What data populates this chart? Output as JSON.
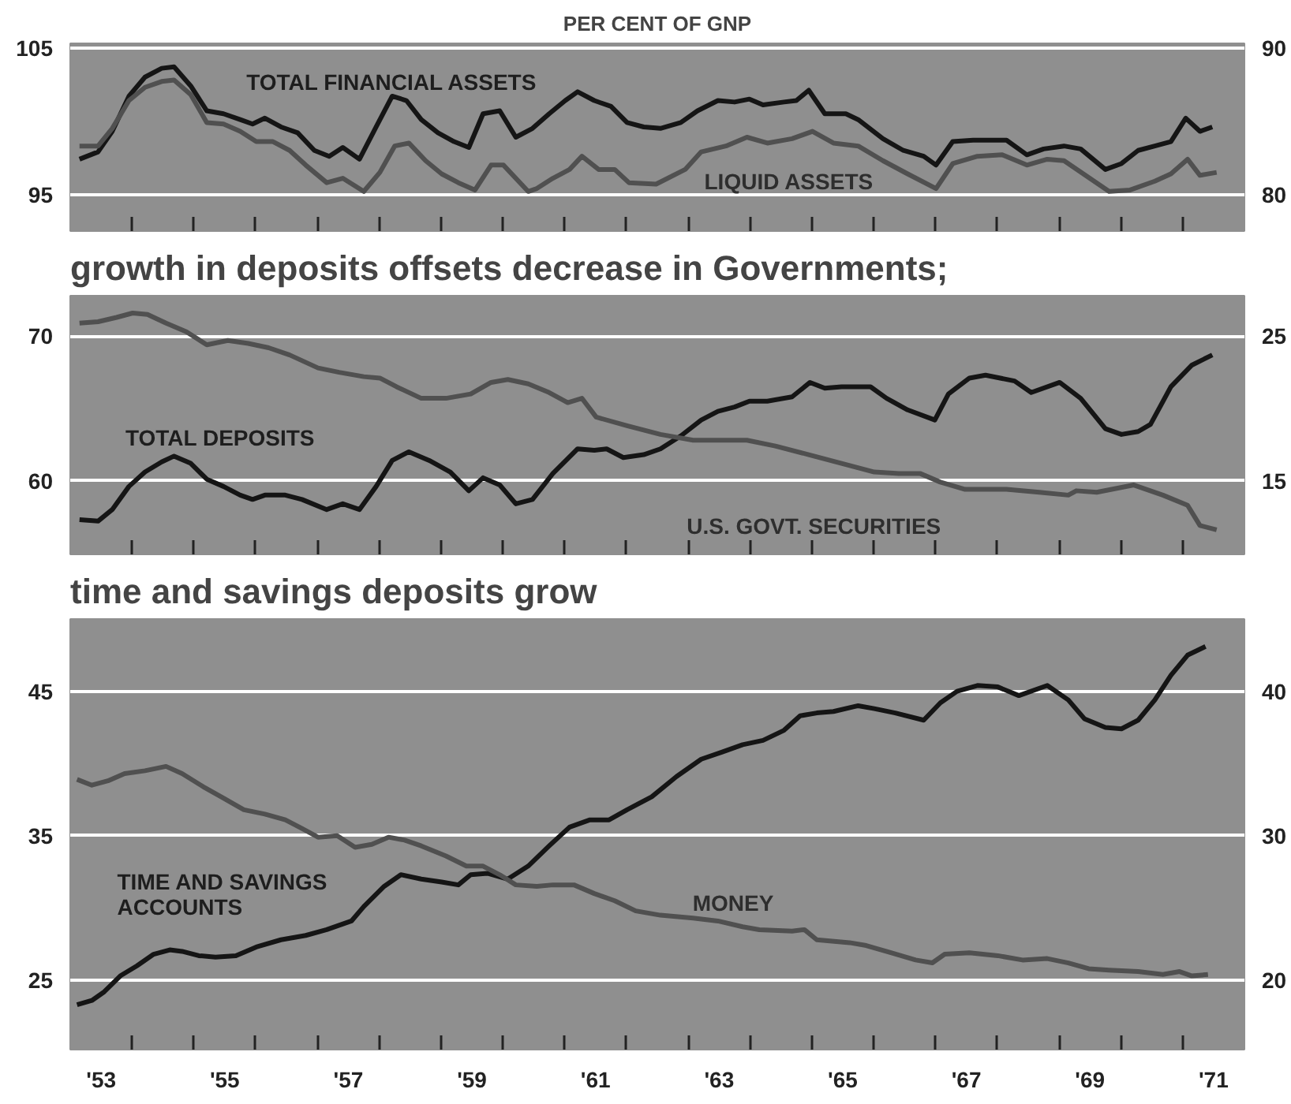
{
  "chart_data": [
    {
      "type": "line",
      "title": "PER CENT OF GNP",
      "xlim": [
        1952.5,
        1971.5
      ],
      "ylim": [
        92.5,
        105.3
      ],
      "yticks": [
        95,
        105
      ],
      "y2lim": [
        77.5,
        90.3
      ],
      "y2ticks": [
        80,
        90
      ],
      "grid": "y",
      "tick_labels": "y",
      "series": [
        {
          "name": "TOTAL FINANCIAL ASSETS",
          "color": "#151515",
          "x": [
            1952.65,
            1952.95,
            1953.18,
            1953.45,
            1953.71,
            1953.98,
            1954.18,
            1954.45,
            1954.71,
            1954.98,
            1955.25,
            1955.45,
            1955.65,
            1955.91,
            1956.18,
            1956.45,
            1956.69,
            1956.91,
            1957.18,
            1957.45,
            1957.71,
            1957.94,
            1958.18,
            1958.45,
            1958.71,
            1958.95,
            1959.18,
            1959.45,
            1959.71,
            1959.98,
            1960.25,
            1960.51,
            1960.71,
            1960.98,
            1961.25,
            1961.51,
            1961.78,
            1962.05,
            1962.38,
            1962.65,
            1962.98,
            1963.25,
            1963.49,
            1963.71,
            1964.05,
            1964.25,
            1964.45,
            1964.71,
            1965.05,
            1965.25,
            1965.65,
            1965.98,
            1966.31,
            1966.51,
            1966.78,
            1967.11,
            1967.65,
            1967.98,
            1968.25,
            1968.58,
            1968.85,
            1969.25,
            1969.51,
            1969.78,
            1970.05,
            1970.31,
            1970.55,
            1970.78,
            1970.98
          ],
          "values": [
            97.4,
            97.9,
            99.3,
            101.7,
            103.0,
            103.6,
            103.7,
            102.4,
            100.7,
            100.5,
            100.1,
            99.8,
            100.2,
            99.6,
            99.2,
            98.0,
            97.6,
            98.2,
            97.4,
            99.6,
            101.7,
            101.4,
            100.1,
            99.2,
            98.6,
            98.2,
            100.5,
            100.7,
            98.9,
            99.5,
            100.5,
            101.4,
            102.0,
            101.4,
            101.0,
            99.9,
            99.6,
            99.5,
            99.9,
            100.7,
            101.4,
            101.3,
            101.5,
            101.1,
            101.3,
            101.4,
            102.1,
            100.5,
            100.5,
            100.1,
            98.8,
            98.0,
            97.6,
            97.0,
            98.6,
            98.7,
            98.7,
            97.7,
            98.1,
            98.3,
            98.1,
            96.7,
            97.1,
            98.0,
            98.3,
            98.6,
            100.2,
            99.3,
            99.6
          ]
        },
        {
          "name": "LIQUID ASSETS",
          "color": "#505050",
          "axis": "y2",
          "x": [
            1952.65,
            1952.95,
            1953.18,
            1953.45,
            1953.71,
            1953.98,
            1954.18,
            1954.45,
            1954.71,
            1954.98,
            1955.25,
            1955.51,
            1955.78,
            1956.05,
            1956.31,
            1956.65,
            1956.91,
            1957.25,
            1957.51,
            1957.75,
            1957.98,
            1958.25,
            1958.51,
            1958.78,
            1959.05,
            1959.31,
            1959.51,
            1959.91,
            1960.05,
            1960.31,
            1960.58,
            1960.78,
            1961.05,
            1961.31,
            1961.54,
            1961.98,
            1962.45,
            1962.71,
            1963.11,
            1963.45,
            1963.78,
            1964.18,
            1964.51,
            1964.85,
            1965.25,
            1965.65,
            1966.05,
            1966.51,
            1966.78,
            1967.18,
            1967.58,
            1967.98,
            1968.31,
            1968.58,
            1969.31,
            1969.65,
            1970.05,
            1970.31,
            1970.58,
            1970.78,
            1971.05
          ],
          "values": [
            83.3,
            83.3,
            84.5,
            86.4,
            87.3,
            87.7,
            87.8,
            86.8,
            84.9,
            84.8,
            84.3,
            83.6,
            83.6,
            83.0,
            82.0,
            80.8,
            81.1,
            80.2,
            81.5,
            83.3,
            83.5,
            82.3,
            81.4,
            80.8,
            80.3,
            82.0,
            82.0,
            80.2,
            80.4,
            81.1,
            81.7,
            82.6,
            81.7,
            81.7,
            80.8,
            80.7,
            81.7,
            82.9,
            83.3,
            83.9,
            83.5,
            83.8,
            84.3,
            83.5,
            83.3,
            82.3,
            81.4,
            80.4,
            82.1,
            82.6,
            82.7,
            82.0,
            82.4,
            82.3,
            80.2,
            80.3,
            80.9,
            81.4,
            82.4,
            81.3,
            81.5
          ]
        }
      ]
    },
    {
      "type": "line",
      "title": "growth in deposits offsets decrease in Governments;",
      "xlim": [
        1952.5,
        1971.5
      ],
      "ylim": [
        54.9,
        72.8
      ],
      "yticks": [
        60,
        70
      ],
      "y2lim": [
        9.9,
        27.8
      ],
      "y2ticks": [
        15,
        25
      ],
      "grid": "y",
      "tick_labels": "y",
      "series": [
        {
          "name": "TOTAL DEPOSITS",
          "color": "#151515",
          "x": [
            1952.65,
            1952.95,
            1953.18,
            1953.45,
            1953.71,
            1953.98,
            1954.18,
            1954.45,
            1954.71,
            1954.98,
            1955.25,
            1955.45,
            1955.65,
            1955.98,
            1956.25,
            1956.65,
            1956.91,
            1957.18,
            1957.45,
            1957.71,
            1957.98,
            1958.31,
            1958.65,
            1958.95,
            1959.18,
            1959.45,
            1959.71,
            1959.98,
            1960.31,
            1960.71,
            1960.98,
            1961.18,
            1961.45,
            1961.78,
            1962.05,
            1962.38,
            1962.71,
            1962.98,
            1963.25,
            1963.49,
            1963.78,
            1964.18,
            1964.47,
            1964.71,
            1964.98,
            1965.45,
            1965.71,
            1966.05,
            1966.49,
            1966.71,
            1967.05,
            1967.31,
            1967.78,
            1968.05,
            1968.51,
            1968.85,
            1969.25,
            1969.51,
            1969.78,
            1969.98,
            1970.31,
            1970.65,
            1970.98
          ],
          "values": [
            57.3,
            57.2,
            58.0,
            59.6,
            60.6,
            61.3,
            61.7,
            61.2,
            60.1,
            59.6,
            59.0,
            58.7,
            59.0,
            59.0,
            58.7,
            58.0,
            58.4,
            58.0,
            59.6,
            61.4,
            62.0,
            61.4,
            60.6,
            59.3,
            60.2,
            59.7,
            58.4,
            58.7,
            60.5,
            62.2,
            62.1,
            62.2,
            61.6,
            61.8,
            62.2,
            63.1,
            64.2,
            64.8,
            65.1,
            65.5,
            65.5,
            65.8,
            66.8,
            66.4,
            66.5,
            66.5,
            65.7,
            64.9,
            64.2,
            66.0,
            67.1,
            67.3,
            66.9,
            66.1,
            66.8,
            65.7,
            63.6,
            63.2,
            63.4,
            63.9,
            66.5,
            68.0,
            68.7
          ]
        },
        {
          "name": "U.S. GOVT. SECURITIES",
          "color": "#505050",
          "axis": "y2",
          "x": [
            1952.65,
            1952.95,
            1953.25,
            1953.51,
            1953.75,
            1954.05,
            1954.38,
            1954.71,
            1955.05,
            1955.38,
            1955.71,
            1956.05,
            1956.51,
            1956.85,
            1957.25,
            1957.51,
            1957.78,
            1958.18,
            1958.58,
            1958.98,
            1959.31,
            1959.58,
            1959.91,
            1960.25,
            1960.55,
            1960.78,
            1961.01,
            1961.51,
            1962.05,
            1962.58,
            1962.98,
            1963.45,
            1963.91,
            1964.45,
            1964.98,
            1965.51,
            1965.91,
            1966.25,
            1966.58,
            1966.98,
            1967.65,
            1968.18,
            1968.65,
            1968.78,
            1969.11,
            1969.71,
            1970.18,
            1970.58,
            1970.78,
            1971.05
          ],
          "values": [
            25.9,
            26.0,
            26.3,
            26.6,
            26.5,
            25.9,
            25.3,
            24.4,
            24.7,
            24.5,
            24.2,
            23.7,
            22.8,
            22.5,
            22.2,
            22.1,
            21.5,
            20.7,
            20.7,
            21.0,
            21.8,
            22.0,
            21.7,
            21.1,
            20.4,
            20.7,
            19.4,
            18.8,
            18.2,
            17.8,
            17.8,
            17.8,
            17.4,
            16.8,
            16.2,
            15.6,
            15.5,
            15.5,
            14.9,
            14.4,
            14.4,
            14.2,
            14.0,
            14.3,
            14.2,
            14.7,
            14.0,
            13.3,
            11.9,
            11.6
          ]
        }
      ]
    },
    {
      "type": "line",
      "title": "time and savings deposits grow",
      "xlim": [
        1952.5,
        1971.5
      ],
      "ylim": [
        20.2,
        50
      ],
      "yticks": [
        25,
        35,
        45
      ],
      "y2lim": [
        15.2,
        45
      ],
      "y2ticks": [
        20,
        30,
        40
      ],
      "grid": "y",
      "xticks": [
        {
          "value": 1953,
          "label": "'53"
        },
        {
          "value": 1955,
          "label": "'55"
        },
        {
          "value": 1957,
          "label": "'57"
        },
        {
          "value": 1959,
          "label": "'59"
        },
        {
          "value": 1961,
          "label": "'61"
        },
        {
          "value": 1963,
          "label": "'63"
        },
        {
          "value": 1965,
          "label": "'65"
        },
        {
          "value": 1967,
          "label": "'67"
        },
        {
          "value": 1969,
          "label": "'69"
        },
        {
          "value": 1971,
          "label": "'71"
        },
        {
          "value": 1953.5,
          "label": null
        },
        {
          "value": 1954.5,
          "label": null
        },
        {
          "value": 1955.5,
          "label": null
        },
        {
          "value": 1956.5,
          "label": null
        },
        {
          "value": 1957.5,
          "label": null
        },
        {
          "value": 1958.5,
          "label": null
        },
        {
          "value": 1959.5,
          "label": null
        },
        {
          "value": 1960.5,
          "label": null
        },
        {
          "value": 1961.5,
          "label": null
        },
        {
          "value": 1962.5,
          "label": null
        },
        {
          "value": 1963.5,
          "label": null
        },
        {
          "value": 1964.5,
          "label": null
        },
        {
          "value": 1965.5,
          "label": null
        },
        {
          "value": 1966.5,
          "label": null
        },
        {
          "value": 1967.5,
          "label": null
        },
        {
          "value": 1968.5,
          "label": null
        },
        {
          "value": 1969.5,
          "label": null
        },
        {
          "value": 1970.5,
          "label": null
        }
      ],
      "series": [
        {
          "name": "TIME AND SAVINGS ACCOUNTS",
          "color": "#151515",
          "x": [
            1952.61,
            1952.85,
            1953.05,
            1953.31,
            1953.58,
            1953.85,
            1954.11,
            1954.31,
            1954.58,
            1954.85,
            1955.18,
            1955.51,
            1955.91,
            1956.31,
            1956.65,
            1957.05,
            1957.25,
            1957.58,
            1957.85,
            1958.18,
            1958.51,
            1958.78,
            1958.98,
            1959.25,
            1959.58,
            1959.91,
            1960.25,
            1960.58,
            1960.91,
            1961.22,
            1961.51,
            1961.91,
            1962.31,
            1962.71,
            1963.05,
            1963.38,
            1963.71,
            1964.05,
            1964.31,
            1964.58,
            1964.85,
            1965.25,
            1965.51,
            1965.85,
            1966.31,
            1966.58,
            1966.85,
            1967.18,
            1967.51,
            1967.85,
            1968.31,
            1968.65,
            1968.91,
            1969.25,
            1969.51,
            1969.78,
            1970.05,
            1970.31,
            1970.58,
            1970.87
          ],
          "values": [
            23.3,
            23.6,
            24.2,
            25.3,
            26.0,
            26.8,
            27.1,
            27.0,
            26.7,
            26.6,
            26.7,
            27.3,
            27.8,
            28.1,
            28.5,
            29.1,
            30.1,
            31.5,
            32.3,
            32.0,
            31.8,
            31.6,
            32.3,
            32.4,
            32.0,
            32.9,
            34.3,
            35.6,
            36.1,
            36.1,
            36.8,
            37.7,
            39.1,
            40.3,
            40.8,
            41.3,
            41.6,
            42.3,
            43.3,
            43.5,
            43.6,
            44.0,
            43.8,
            43.5,
            43.0,
            44.2,
            45.0,
            45.4,
            45.3,
            44.7,
            45.4,
            44.4,
            43.1,
            42.5,
            42.4,
            43.0,
            44.4,
            46.1,
            47.5,
            48.1
          ]
        },
        {
          "name": "MONEY",
          "color": "#505050",
          "axis": "y2",
          "x": [
            1952.61,
            1952.85,
            1953.11,
            1953.38,
            1953.71,
            1954.05,
            1954.31,
            1954.65,
            1954.98,
            1955.31,
            1955.65,
            1955.98,
            1956.25,
            1956.51,
            1956.82,
            1957.11,
            1957.38,
            1957.65,
            1957.91,
            1958.18,
            1958.58,
            1958.91,
            1959.18,
            1959.45,
            1959.71,
            1960.05,
            1960.31,
            1960.65,
            1960.98,
            1961.31,
            1961.65,
            1962.05,
            1962.58,
            1962.98,
            1963.38,
            1963.65,
            1964.18,
            1964.38,
            1964.58,
            1965.11,
            1965.38,
            1965.78,
            1966.18,
            1966.45,
            1966.65,
            1967.05,
            1967.51,
            1967.91,
            1968.31,
            1968.65,
            1968.98,
            1969.31,
            1969.78,
            1970.18,
            1970.45,
            1970.65,
            1970.91
          ],
          "values": [
            33.9,
            33.5,
            33.8,
            34.3,
            34.5,
            34.8,
            34.3,
            33.4,
            32.6,
            31.8,
            31.5,
            31.1,
            30.5,
            29.9,
            30.0,
            29.2,
            29.4,
            29.9,
            29.7,
            29.3,
            28.6,
            27.9,
            27.9,
            27.3,
            26.6,
            26.5,
            26.6,
            26.6,
            26.0,
            25.5,
            24.8,
            24.5,
            24.3,
            24.1,
            23.7,
            23.5,
            23.4,
            23.5,
            22.8,
            22.6,
            22.4,
            21.9,
            21.4,
            21.2,
            21.8,
            21.9,
            21.7,
            21.4,
            21.5,
            21.2,
            20.8,
            20.7,
            20.6,
            20.4,
            20.6,
            20.3,
            20.4
          ]
        }
      ]
    }
  ]
}
